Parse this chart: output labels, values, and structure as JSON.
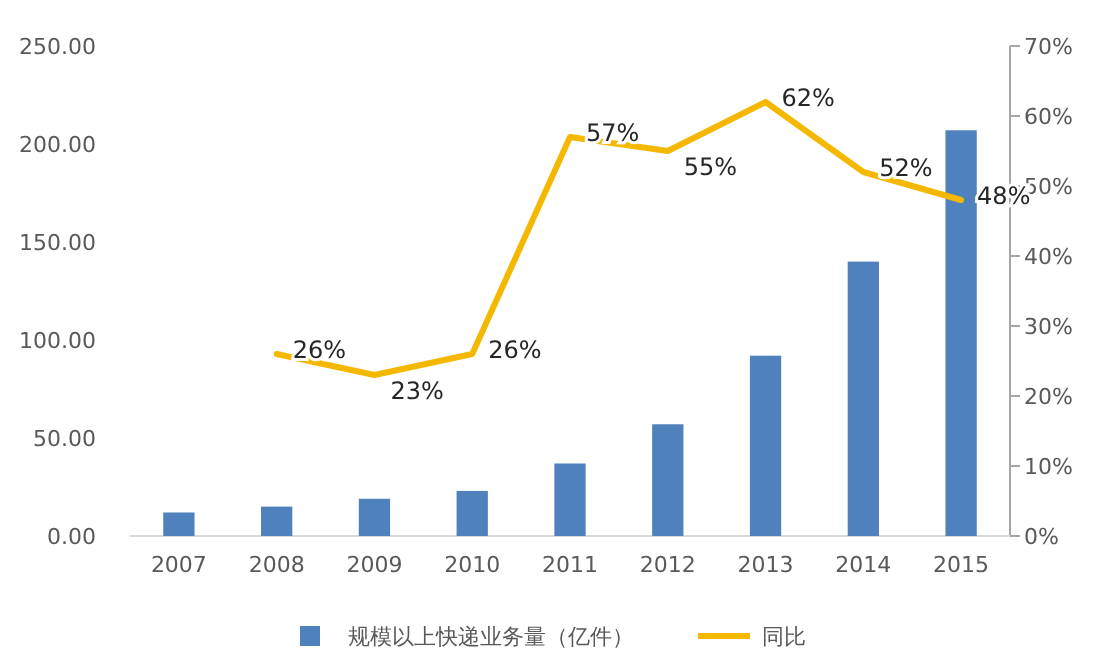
{
  "chart_data": {
    "type": "bar",
    "categories": [
      "2007",
      "2008",
      "2009",
      "2010",
      "2011",
      "2012",
      "2013",
      "2014",
      "2015"
    ],
    "series": [
      {
        "name": "规模以上快递业务量（亿件）",
        "color": "#4f81bd",
        "values": [
          12,
          15,
          19,
          23,
          37,
          57,
          92,
          140,
          207
        ]
      },
      {
        "name": "同比",
        "type": "line",
        "axis": "y2",
        "color": "#f5b800",
        "values": [
          null,
          26,
          23,
          26,
          57,
          55,
          62,
          52,
          48
        ],
        "value_labels": [
          null,
          "26%",
          "23%",
          "26%",
          "57%",
          "55%",
          "62%",
          "52%",
          "48%"
        ]
      }
    ],
    "ylim": [
      0,
      250
    ],
    "yticks": [
      {
        "value": 0,
        "label": "0.00"
      },
      {
        "value": 50,
        "label": "50.00"
      },
      {
        "value": 100,
        "label": "100.00"
      },
      {
        "value": 150,
        "label": "150.00"
      },
      {
        "value": 200,
        "label": "200.00"
      },
      {
        "value": 250,
        "label": "250.00"
      }
    ],
    "y2lim": [
      0,
      70
    ],
    "y2ticks": [
      {
        "value": 0,
        "label": "0%"
      },
      {
        "value": 10,
        "label": "10%"
      },
      {
        "value": 20,
        "label": "20%"
      },
      {
        "value": 30,
        "label": "30%"
      },
      {
        "value": 40,
        "label": "40%"
      },
      {
        "value": 50,
        "label": "50%"
      },
      {
        "value": 60,
        "label": "60%"
      },
      {
        "value": 70,
        "label": "70%"
      }
    ],
    "legend": "bottom",
    "grid": false
  }
}
